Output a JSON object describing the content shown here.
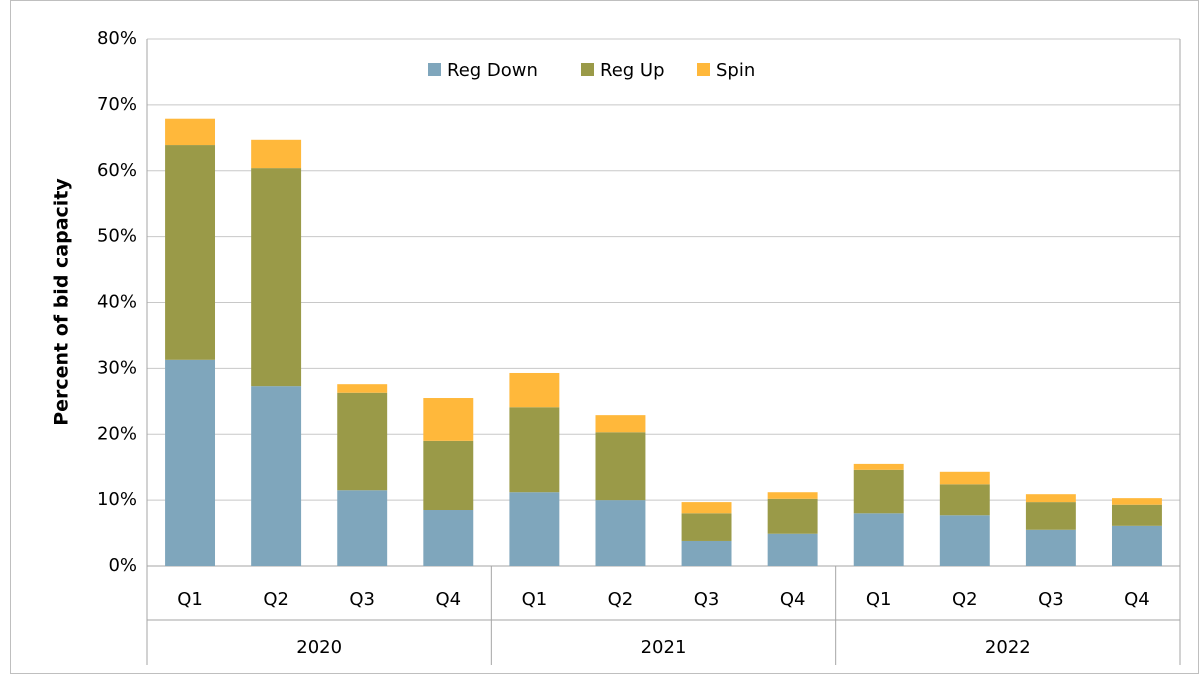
{
  "chart_data": {
    "type": "stacked_bar",
    "ylabel": "Percent of bid capacity",
    "categories": [
      "Q1",
      "Q2",
      "Q3",
      "Q4",
      "Q1",
      "Q2",
      "Q3",
      "Q4",
      "Q1",
      "Q2",
      "Q3",
      "Q4"
    ],
    "groups": [
      "2020",
      "2021",
      "2022"
    ],
    "series": [
      {
        "name": "Reg Down",
        "color": "#7fa6bc",
        "values": [
          31.3,
          27.3,
          11.5,
          8.5,
          11.2,
          10.0,
          3.8,
          4.9,
          8.0,
          7.7,
          5.5,
          6.1
        ]
      },
      {
        "name": "Reg Up",
        "color": "#9a9a48",
        "values": [
          32.6,
          33.1,
          14.8,
          10.5,
          12.9,
          10.3,
          4.2,
          5.3,
          6.6,
          4.7,
          4.2,
          3.2
        ]
      },
      {
        "name": "Spin",
        "color": "#ffb83b",
        "values": [
          4.0,
          4.3,
          1.3,
          6.5,
          5.2,
          2.6,
          1.7,
          1.0,
          0.9,
          1.9,
          1.2,
          1.0
        ]
      }
    ],
    "ylim": [
      0,
      80
    ],
    "yticks": [
      {
        "value": 0,
        "label": "0%"
      },
      {
        "value": 10,
        "label": "10%"
      },
      {
        "value": 20,
        "label": "20%"
      },
      {
        "value": 30,
        "label": "30%"
      },
      {
        "value": 40,
        "label": "40%"
      },
      {
        "value": 50,
        "label": "50%"
      },
      {
        "value": 60,
        "label": "60%"
      },
      {
        "value": 70,
        "label": "70%"
      },
      {
        "value": 80,
        "label": "80%"
      }
    ],
    "grid": true,
    "legend": "top"
  }
}
